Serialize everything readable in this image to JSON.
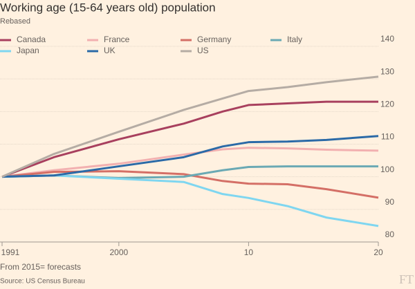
{
  "chart_data": {
    "type": "line",
    "title": "Working age (15-64 years old) population",
    "subtitle": "Rebased",
    "note": "From 2015= forecasts",
    "source": "Source: US Census Bureau",
    "logo": "FT",
    "x": [
      1991,
      1995,
      2000,
      2005,
      2008,
      2010,
      2013,
      2016,
      2020
    ],
    "xlim": [
      1991,
      2020
    ],
    "xticks": [
      1991,
      2000,
      {
        "value": 2010,
        "label": "10"
      },
      {
        "value": 2020,
        "label": "20"
      }
    ],
    "ylim": [
      80,
      140
    ],
    "yticks": [
      80,
      90,
      100,
      110,
      120,
      130,
      140
    ],
    "grid": true,
    "series": [
      {
        "name": "Canada",
        "color": "#a8405e",
        "values": [
          100,
          106,
          111.5,
          116.3,
          120,
          122,
          122.5,
          123,
          123
        ]
      },
      {
        "name": "France",
        "color": "#f2b0b0",
        "values": [
          100,
          102,
          104,
          106.8,
          108.4,
          108.9,
          108.7,
          108.3,
          108
        ]
      },
      {
        "name": "Germany",
        "color": "#d46f66",
        "values": [
          100,
          101.5,
          101.7,
          100.8,
          98.7,
          97.9,
          97.7,
          96.2,
          93.6
        ]
      },
      {
        "name": "Italy",
        "color": "#6aa9b4",
        "values": [
          100,
          100.4,
          99.6,
          100,
          102,
          103,
          103.2,
          103.2,
          103.2
        ]
      },
      {
        "name": "Japan",
        "color": "#7fd6f0",
        "values": [
          100,
          100.4,
          99.4,
          98.4,
          94.7,
          93.5,
          91,
          87.5,
          84.9
        ]
      },
      {
        "name": "UK",
        "color": "#2b6aa7",
        "values": [
          100,
          100.4,
          103.2,
          106,
          109.3,
          110.6,
          110.8,
          111.3,
          112.5
        ]
      },
      {
        "name": "US",
        "color": "#b5aca4",
        "values": [
          100,
          107,
          113.8,
          120.5,
          124,
          126.3,
          127.5,
          129,
          130.7
        ]
      }
    ]
  }
}
